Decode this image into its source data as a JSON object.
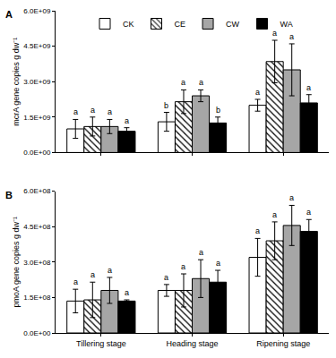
{
  "chart_data": [
    {
      "type": "bar",
      "title": "A",
      "y_label": "mcrA gene copies g dw⁻¹",
      "categories": [
        "Tillering stage",
        "Heading stage",
        "Ripening stage"
      ],
      "ylim": [
        0,
        6000000000
      ],
      "yticks": [
        {
          "value": 0,
          "label": "0.0E+00"
        },
        {
          "value": 1500000000,
          "label": "1.5E+09"
        },
        {
          "value": 3000000000,
          "label": "3.0E+09"
        },
        {
          "value": 4500000000,
          "label": "4.5E+09"
        },
        {
          "value": 6000000000,
          "label": "6.0E+09"
        }
      ],
      "grid": false,
      "legend": "top",
      "tick_labels": "y",
      "series": [
        {
          "name": "CK",
          "color": "#ffffff",
          "values": [
            1000000000,
            1300000000,
            2000000000
          ],
          "errors": [
            400000000,
            400000000,
            250000000
          ],
          "annotations": [
            "a",
            "b",
            "a"
          ]
        },
        {
          "name": "CE",
          "color": "#ffffff",
          "marker": "hatch",
          "values": [
            1100000000,
            2150000000,
            3850000000
          ],
          "errors": [
            400000000,
            500000000,
            900000000
          ],
          "annotations": [
            "a",
            "a",
            "a"
          ]
        },
        {
          "name": "CW",
          "color": "#a6a6a6",
          "values": [
            1100000000,
            2400000000,
            3500000000
          ],
          "errors": [
            300000000,
            250000000,
            1100000000
          ],
          "annotations": [
            "a",
            "a",
            "a"
          ]
        },
        {
          "name": "WA",
          "color": "#000000",
          "values": [
            900000000,
            1250000000,
            2100000000
          ],
          "errors": [
            150000000,
            250000000,
            350000000
          ],
          "annotations": [
            "a",
            "b",
            "a"
          ]
        }
      ]
    },
    {
      "type": "bar",
      "title": "B",
      "y_label": "pmoA gene copies g dw⁻¹",
      "categories": [
        "Tillering stage",
        "Heading stage",
        "Ripening stage"
      ],
      "ylim": [
        0,
        600000000
      ],
      "yticks": [
        {
          "value": 0,
          "label": "0.0E+00"
        },
        {
          "value": 150000000,
          "label": "1.5E+08"
        },
        {
          "value": 300000000,
          "label": "3.0E+08"
        },
        {
          "value": 450000000,
          "label": "4.5E+08"
        },
        {
          "value": 600000000,
          "label": "6.0E+08"
        }
      ],
      "grid": false,
      "series": [
        {
          "name": "CK",
          "color": "#ffffff",
          "values": [
            135000000,
            180000000,
            320000000
          ],
          "errors": [
            50000000,
            25000000,
            80000000
          ],
          "annotations": [
            "a",
            "a",
            "a"
          ]
        },
        {
          "name": "CE",
          "color": "#ffffff",
          "marker": "hatch",
          "values": [
            140000000,
            180000000,
            390000000
          ],
          "errors": [
            75000000,
            70000000,
            80000000
          ],
          "annotations": [
            "a",
            "a",
            "a"
          ]
        },
        {
          "name": "CW",
          "color": "#a6a6a6",
          "values": [
            180000000,
            230000000,
            455000000
          ],
          "errors": [
            55000000,
            80000000,
            85000000
          ],
          "annotations": [
            "a",
            "a",
            "a"
          ]
        },
        {
          "name": "WA",
          "color": "#000000",
          "values": [
            135000000,
            215000000,
            430000000
          ],
          "errors": [
            5000000,
            50000000,
            50000000
          ],
          "annotations": [
            "a",
            "a",
            "a"
          ]
        }
      ]
    }
  ]
}
